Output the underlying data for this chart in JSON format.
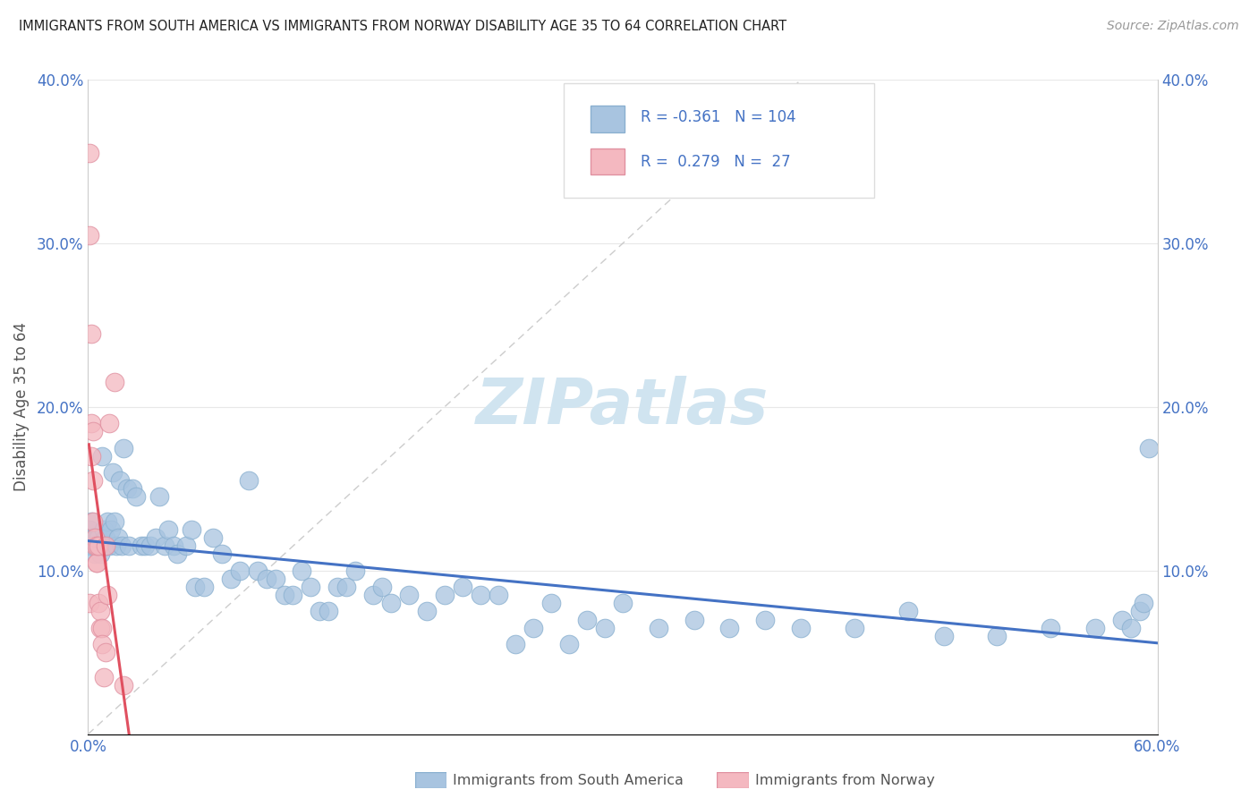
{
  "title": "IMMIGRANTS FROM SOUTH AMERICA VS IMMIGRANTS FROM NORWAY DISABILITY AGE 35 TO 64 CORRELATION CHART",
  "source": "Source: ZipAtlas.com",
  "ylabel": "Disability Age 35 to 64",
  "R_south_america": -0.361,
  "N_south_america": 104,
  "R_norway": 0.279,
  "N_norway": 27,
  "xlim": [
    0.0,
    0.6
  ],
  "ylim": [
    0.0,
    0.4
  ],
  "color_south_america": "#a8c4e0",
  "color_norway": "#f4b8c0",
  "trendline_south_america": "#4472c4",
  "trendline_norway": "#e05060",
  "watermark_color": "#d0e4f0",
  "background_color": "#ffffff",
  "grid_color": "#e8e8e8",
  "title_color": "#222222",
  "axis_label_color": "#4472c4",
  "south_america_x": [
    0.001,
    0.001,
    0.001,
    0.002,
    0.002,
    0.002,
    0.002,
    0.003,
    0.003,
    0.003,
    0.003,
    0.004,
    0.004,
    0.004,
    0.005,
    0.005,
    0.005,
    0.006,
    0.006,
    0.006,
    0.007,
    0.007,
    0.008,
    0.008,
    0.009,
    0.009,
    0.01,
    0.01,
    0.011,
    0.012,
    0.013,
    0.014,
    0.015,
    0.016,
    0.017,
    0.018,
    0.019,
    0.02,
    0.022,
    0.023,
    0.025,
    0.027,
    0.03,
    0.032,
    0.035,
    0.038,
    0.04,
    0.043,
    0.045,
    0.048,
    0.05,
    0.055,
    0.058,
    0.06,
    0.065,
    0.07,
    0.075,
    0.08,
    0.085,
    0.09,
    0.095,
    0.1,
    0.105,
    0.11,
    0.115,
    0.12,
    0.125,
    0.13,
    0.135,
    0.14,
    0.145,
    0.15,
    0.16,
    0.165,
    0.17,
    0.18,
    0.19,
    0.2,
    0.21,
    0.22,
    0.23,
    0.24,
    0.25,
    0.26,
    0.27,
    0.28,
    0.29,
    0.3,
    0.32,
    0.34,
    0.36,
    0.38,
    0.4,
    0.43,
    0.46,
    0.48,
    0.51,
    0.54,
    0.565,
    0.58,
    0.585,
    0.59,
    0.592,
    0.595
  ],
  "south_america_y": [
    0.12,
    0.115,
    0.125,
    0.115,
    0.12,
    0.115,
    0.13,
    0.115,
    0.115,
    0.12,
    0.115,
    0.115,
    0.11,
    0.12,
    0.115,
    0.115,
    0.12,
    0.115,
    0.115,
    0.12,
    0.11,
    0.115,
    0.115,
    0.17,
    0.115,
    0.125,
    0.115,
    0.12,
    0.13,
    0.115,
    0.125,
    0.16,
    0.13,
    0.115,
    0.12,
    0.155,
    0.115,
    0.175,
    0.15,
    0.115,
    0.15,
    0.145,
    0.115,
    0.115,
    0.115,
    0.12,
    0.145,
    0.115,
    0.125,
    0.115,
    0.11,
    0.115,
    0.125,
    0.09,
    0.09,
    0.12,
    0.11,
    0.095,
    0.1,
    0.155,
    0.1,
    0.095,
    0.095,
    0.085,
    0.085,
    0.1,
    0.09,
    0.075,
    0.075,
    0.09,
    0.09,
    0.1,
    0.085,
    0.09,
    0.08,
    0.085,
    0.075,
    0.085,
    0.09,
    0.085,
    0.085,
    0.055,
    0.065,
    0.08,
    0.055,
    0.07,
    0.065,
    0.08,
    0.065,
    0.07,
    0.065,
    0.07,
    0.065,
    0.065,
    0.075,
    0.06,
    0.06,
    0.065,
    0.065,
    0.07,
    0.065,
    0.075,
    0.08,
    0.175
  ],
  "norway_x": [
    0.001,
    0.001,
    0.001,
    0.002,
    0.002,
    0.002,
    0.003,
    0.003,
    0.003,
    0.004,
    0.004,
    0.005,
    0.005,
    0.005,
    0.006,
    0.006,
    0.007,
    0.007,
    0.008,
    0.008,
    0.009,
    0.01,
    0.01,
    0.011,
    0.012,
    0.015,
    0.02
  ],
  "norway_y": [
    0.355,
    0.305,
    0.08,
    0.245,
    0.17,
    0.19,
    0.185,
    0.13,
    0.155,
    0.115,
    0.12,
    0.105,
    0.105,
    0.115,
    0.115,
    0.08,
    0.065,
    0.075,
    0.065,
    0.055,
    0.035,
    0.05,
    0.115,
    0.085,
    0.19,
    0.215,
    0.03
  ]
}
